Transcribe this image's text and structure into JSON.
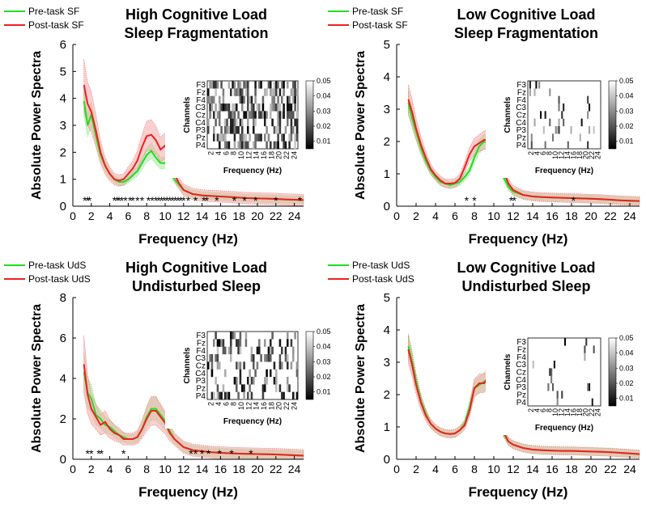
{
  "figure": {
    "panels": [
      {
        "title_line1": "High Cognitive Load",
        "title_line2": "Sleep Fragmentation"
      },
      {
        "title_line1": "Low Cognitive Load",
        "title_line2": "Sleep Fragmentation"
      },
      {
        "title_line1": "High Cognitive Load",
        "title_line2": "Undisturbed Sleep"
      },
      {
        "title_line1": "Low Cognitive Load",
        "title_line2": "Undisturbed Sleep"
      }
    ],
    "colors": {
      "pre": "#22dd22",
      "post": "#ee2020",
      "pre_band": "#a8e8a0",
      "post_band": "#f4a8a8"
    }
  },
  "chart_data": [
    {
      "type": "line",
      "title": "High Cognitive Load Sleep Fragmentation",
      "xlabel": "Frequency (Hz)",
      "ylabel": "Absolute Power Spectra",
      "xlim": [
        0,
        25
      ],
      "ylim": [
        0,
        6
      ],
      "xticks": [
        0,
        2,
        4,
        6,
        8,
        10,
        12,
        14,
        16,
        18,
        20,
        22,
        24
      ],
      "yticks": [
        0,
        1,
        2,
        3,
        4,
        5,
        6
      ],
      "legend": [
        "Pre-task SF",
        "Post-task SF"
      ],
      "series": [
        {
          "name": "Pre-task SF",
          "x": [
            1.2,
            1.6,
            2,
            2.5,
            3,
            3.5,
            4,
            4.5,
            5,
            5.5,
            6,
            6.5,
            7,
            7.5,
            8,
            8.5,
            9,
            9.5,
            10,
            10.5,
            11,
            11.5,
            12,
            13,
            14,
            15,
            16,
            17,
            18,
            19,
            20,
            21,
            22,
            23,
            24,
            25
          ],
          "y": [
            3.9,
            3.0,
            3.4,
            2.6,
            1.9,
            1.5,
            1.2,
            1.0,
            0.9,
            0.9,
            1.0,
            1.15,
            1.3,
            1.6,
            1.9,
            2.05,
            1.8,
            1.6,
            1.6,
            1.3,
            1.0,
            0.8,
            0.6,
            0.45,
            0.4,
            0.38,
            0.36,
            0.34,
            0.32,
            0.3,
            0.29,
            0.28,
            0.27,
            0.25,
            0.24,
            0.23
          ],
          "band": 0.55
        },
        {
          "name": "Post-task SF",
          "x": [
            1.2,
            1.6,
            2,
            2.5,
            3,
            3.5,
            4,
            4.5,
            5,
            5.5,
            6,
            6.5,
            7,
            7.5,
            8,
            8.5,
            9,
            9.5,
            10,
            10.5,
            11,
            11.5,
            12,
            13,
            14,
            15,
            16,
            17,
            18,
            19,
            20,
            21,
            22,
            23,
            24,
            25
          ],
          "y": [
            4.5,
            3.8,
            3.5,
            2.8,
            2.0,
            1.5,
            1.2,
            1.0,
            0.95,
            1.0,
            1.2,
            1.4,
            1.7,
            2.2,
            2.6,
            2.65,
            2.45,
            2.1,
            2.25,
            1.8,
            1.2,
            0.85,
            0.6,
            0.45,
            0.4,
            0.38,
            0.36,
            0.34,
            0.32,
            0.3,
            0.29,
            0.28,
            0.27,
            0.25,
            0.24,
            0.23
          ],
          "band": 0.85
        }
      ],
      "significance_markers_x": [
        1.3,
        1.6,
        1.8,
        4.5,
        4.8,
        5.0,
        5.3,
        5.7,
        6.2,
        6.5,
        7.0,
        7.5,
        8.2,
        8.6,
        9.0,
        9.3,
        9.6,
        9.9,
        10.2,
        10.5,
        10.8,
        11.1,
        11.4,
        11.7,
        12.0,
        12.5,
        13.3,
        14.2,
        14.5,
        15.6,
        17.5,
        18.6,
        19.8,
        22.0,
        24.6
      ],
      "inset": {
        "type": "heatmap",
        "xlabel": "Frequency (Hz)",
        "ylabel": "Channels",
        "channels": [
          "F3",
          "Fz",
          "F4",
          "C3",
          "Cz",
          "C4",
          "P3",
          "Pz",
          "P4"
        ],
        "xticks": [
          2,
          4,
          6,
          8,
          10,
          12,
          14,
          16,
          18,
          20,
          22,
          24
        ],
        "colorbar": {
          "ticks": [
            0.01,
            0.02,
            0.03,
            0.04,
            0.05
          ],
          "range": [
            0.005,
            0.05
          ]
        },
        "density": 0.5
      }
    },
    {
      "type": "line",
      "title": "Low Cognitive Load Sleep Fragmentation",
      "xlabel": "Frequency (Hz)",
      "ylabel": "Absolute Power Spectra",
      "xlim": [
        0,
        25
      ],
      "ylim": [
        0,
        5
      ],
      "xticks": [
        0,
        2,
        4,
        6,
        8,
        10,
        12,
        14,
        16,
        18,
        20,
        22,
        24
      ],
      "yticks": [
        0,
        1,
        2,
        3,
        4,
        5
      ],
      "legend": [
        "Pre-task SF",
        "Post-task SF"
      ],
      "series": [
        {
          "name": "Pre-task SF",
          "x": [
            1.2,
            1.6,
            2,
            2.5,
            3,
            3.5,
            4,
            4.5,
            5,
            5.5,
            6,
            6.5,
            7,
            7.5,
            8,
            8.5,
            9,
            9.5,
            10,
            10.5,
            11,
            11.5,
            12,
            13,
            14,
            15,
            16,
            17,
            18,
            19,
            20,
            21,
            22,
            23,
            24,
            25
          ],
          "y": [
            3.2,
            2.7,
            2.3,
            1.8,
            1.4,
            1.1,
            0.9,
            0.75,
            0.7,
            0.65,
            0.7,
            0.75,
            0.9,
            1.1,
            1.5,
            1.85,
            2.0,
            1.95,
            1.75,
            1.3,
            0.9,
            0.6,
            0.45,
            0.35,
            0.3,
            0.28,
            0.27,
            0.26,
            0.25,
            0.24,
            0.23,
            0.22,
            0.2,
            0.18,
            0.17,
            0.16
          ],
          "band": 0.45
        },
        {
          "name": "Post-task SF",
          "x": [
            1.2,
            1.6,
            2,
            2.5,
            3,
            3.5,
            4,
            4.5,
            5,
            5.5,
            6,
            6.5,
            7,
            7.5,
            8,
            8.5,
            9,
            9.5,
            10,
            10.5,
            11,
            11.5,
            12,
            13,
            14,
            15,
            16,
            17,
            18,
            19,
            20,
            21,
            22,
            23,
            24,
            25
          ],
          "y": [
            3.3,
            2.9,
            2.4,
            1.9,
            1.5,
            1.15,
            0.95,
            0.8,
            0.7,
            0.7,
            0.72,
            0.85,
            1.2,
            1.6,
            1.85,
            1.95,
            2.05,
            2.05,
            1.95,
            1.6,
            1.1,
            0.7,
            0.5,
            0.35,
            0.3,
            0.28,
            0.27,
            0.26,
            0.25,
            0.24,
            0.23,
            0.22,
            0.2,
            0.18,
            0.17,
            0.16
          ],
          "band": 0.55
        }
      ],
      "significance_markers_x": [
        7.2,
        8.0,
        11.8,
        12.1,
        18.2
      ],
      "inset": {
        "type": "heatmap",
        "xlabel": "Frequency (Hz)",
        "ylabel": "Channels",
        "channels": [
          "F3",
          "Fz",
          "F4",
          "C3",
          "Cz",
          "C4",
          "P3",
          "Pz",
          "P4"
        ],
        "xticks": [
          2,
          4,
          6,
          8,
          10,
          12,
          14,
          16,
          18,
          20,
          22,
          24
        ],
        "colorbar": {
          "ticks": [
            0.01,
            0.02,
            0.03,
            0.04,
            0.05
          ],
          "range": [
            0.005,
            0.05
          ]
        },
        "density": 0.1
      }
    },
    {
      "type": "line",
      "title": "High Cognitive Load Undisturbed Sleep",
      "xlabel": "Frequency (Hz)",
      "ylabel": "Absolute Power Spectra",
      "xlim": [
        0,
        25
      ],
      "ylim": [
        0,
        8
      ],
      "xticks": [
        0,
        2,
        4,
        6,
        8,
        10,
        12,
        14,
        16,
        18,
        20,
        22,
        24
      ],
      "yticks": [
        0,
        2,
        4,
        6,
        8
      ],
      "legend": [
        "Pre-task UdS",
        "Post-task UdS"
      ],
      "series": [
        {
          "name": "Pre-task UdS",
          "x": [
            1.2,
            1.6,
            2,
            2.5,
            3,
            3.5,
            4,
            4.5,
            5,
            5.5,
            6,
            6.5,
            7,
            7.5,
            8,
            8.5,
            9,
            9.5,
            10,
            10.5,
            11,
            11.5,
            12,
            13,
            14,
            15,
            16,
            17,
            18,
            19,
            20,
            21,
            22,
            23,
            24,
            25
          ],
          "y": [
            4.3,
            3.3,
            3.0,
            2.2,
            2.0,
            1.7,
            1.6,
            1.4,
            1.2,
            1.1,
            1.0,
            1.0,
            1.1,
            1.5,
            2.1,
            2.5,
            2.5,
            2.2,
            1.9,
            1.4,
            1.0,
            0.8,
            0.6,
            0.45,
            0.4,
            0.35,
            0.32,
            0.3,
            0.28,
            0.27,
            0.26,
            0.25,
            0.24,
            0.22,
            0.2,
            0.18
          ],
          "band": 0.9
        },
        {
          "name": "Post-task UdS",
          "x": [
            1.2,
            1.6,
            2,
            2.5,
            3,
            3.5,
            4,
            4.5,
            5,
            5.5,
            6,
            6.5,
            7,
            7.5,
            8,
            8.5,
            9,
            9.5,
            10,
            10.5,
            11,
            11.5,
            12,
            13,
            14,
            15,
            16,
            17,
            18,
            19,
            20,
            21,
            22,
            23,
            24,
            25
          ],
          "y": [
            4.7,
            3.2,
            2.5,
            2.1,
            1.7,
            1.85,
            1.5,
            1.3,
            1.2,
            1.0,
            1.0,
            1.0,
            1.1,
            1.5,
            2.0,
            2.4,
            2.4,
            2.1,
            1.8,
            1.3,
            1.0,
            0.8,
            0.6,
            0.45,
            0.4,
            0.35,
            0.32,
            0.3,
            0.28,
            0.27,
            0.26,
            0.25,
            0.24,
            0.22,
            0.2,
            0.18
          ],
          "band": 1.2
        }
      ],
      "significance_markers_x": [
        1.6,
        2.0,
        2.8,
        3.1,
        5.5,
        12.8,
        13.3,
        14.0,
        14.7,
        15.9,
        17.2,
        19.3
      ],
      "inset": {
        "type": "heatmap",
        "xlabel": "Frequency (Hz)",
        "ylabel": "Channels",
        "channels": [
          "F3",
          "Fz",
          "F4",
          "C3",
          "Cz",
          "C4",
          "P3",
          "Pz",
          "P4"
        ],
        "xticks": [
          2,
          4,
          6,
          8,
          10,
          12,
          14,
          16,
          18,
          20,
          22,
          24
        ],
        "colorbar": {
          "ticks": [
            0.01,
            0.02,
            0.03,
            0.04,
            0.05
          ],
          "range": [
            0.005,
            0.05
          ]
        },
        "density": 0.3
      }
    },
    {
      "type": "line",
      "title": "Low Cognitive Load Undisturbed Sleep",
      "xlabel": "Frequency (Hz)",
      "ylabel": "Absolute Power Spectra",
      "xlim": [
        0,
        25
      ],
      "ylim": [
        0,
        5
      ],
      "xticks": [
        0,
        2,
        4,
        6,
        8,
        10,
        12,
        14,
        16,
        18,
        20,
        22,
        24
      ],
      "yticks": [
        0,
        1,
        2,
        3,
        4,
        5
      ],
      "legend": [
        "Pre-task UdS",
        "Post-task UdS"
      ],
      "series": [
        {
          "name": "Pre-task UdS",
          "x": [
            1.2,
            1.6,
            2,
            2.5,
            3,
            3.5,
            4,
            4.5,
            5,
            5.5,
            6,
            6.5,
            7,
            7.5,
            8,
            8.5,
            9,
            9.5,
            10,
            10.5,
            11,
            11.5,
            12,
            13,
            14,
            15,
            16,
            17,
            18,
            19,
            20,
            21,
            22,
            23,
            24,
            25
          ],
          "y": [
            3.5,
            3.0,
            2.4,
            1.8,
            1.4,
            1.1,
            0.95,
            0.85,
            0.8,
            0.78,
            0.8,
            0.9,
            1.1,
            1.6,
            2.2,
            2.3,
            2.4,
            2.3,
            1.8,
            1.2,
            0.8,
            0.55,
            0.45,
            0.35,
            0.3,
            0.28,
            0.27,
            0.26,
            0.26,
            0.25,
            0.24,
            0.23,
            0.22,
            0.2,
            0.18,
            0.16
          ],
          "band": 0.45
        },
        {
          "name": "Post-task UdS",
          "x": [
            1.2,
            1.6,
            2,
            2.5,
            3,
            3.5,
            4,
            4.5,
            5,
            5.5,
            6,
            6.5,
            7,
            7.5,
            8,
            8.5,
            9,
            9.5,
            10,
            10.5,
            11,
            11.5,
            12,
            13,
            14,
            15,
            16,
            17,
            18,
            19,
            20,
            21,
            22,
            23,
            24,
            25
          ],
          "y": [
            3.4,
            2.9,
            2.3,
            1.75,
            1.35,
            1.1,
            0.95,
            0.85,
            0.8,
            0.78,
            0.8,
            0.9,
            1.05,
            1.5,
            2.2,
            2.35,
            2.35,
            2.6,
            2.0,
            1.3,
            0.85,
            0.55,
            0.45,
            0.35,
            0.3,
            0.28,
            0.27,
            0.26,
            0.26,
            0.25,
            0.24,
            0.23,
            0.22,
            0.2,
            0.18,
            0.16
          ],
          "band": 0.5
        }
      ],
      "significance_markers_x": [],
      "inset": {
        "type": "heatmap",
        "xlabel": "Frequency (Hz)",
        "ylabel": "Channels",
        "channels": [
          "F3",
          "Fz",
          "F4",
          "C3",
          "Cz",
          "C4",
          "P3",
          "Pz",
          "P4"
        ],
        "xticks": [
          2,
          4,
          6,
          8,
          10,
          12,
          14,
          16,
          18,
          20,
          22,
          24
        ],
        "colorbar": {
          "ticks": [
            0.01,
            0.02,
            0.03,
            0.04,
            0.05
          ],
          "range": [
            0.005,
            0.05
          ]
        },
        "density": 0.05
      }
    }
  ]
}
